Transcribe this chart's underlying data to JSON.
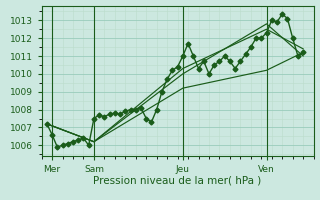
{
  "background_color": "#cce8e0",
  "grid_color_major": "#99ccbb",
  "grid_color_minor": "#bbddcc",
  "line_color": "#1a5c1a",
  "marker_style": "D",
  "marker_size": 2.5,
  "line_width": 1.0,
  "ylabel_ticks": [
    1006,
    1007,
    1008,
    1009,
    1010,
    1011,
    1012,
    1013
  ],
  "xlim": [
    0,
    52
  ],
  "ylim": [
    1005.4,
    1013.8
  ],
  "xlabel": "Pression niveau de la mer( hPa )",
  "xlabel_fontsize": 7.5,
  "tick_fontsize": 6.5,
  "day_labels": [
    "Mer",
    "Sam",
    "Jeu",
    "Ven"
  ],
  "day_positions": [
    2,
    10,
    27,
    43
  ],
  "vline_positions": [
    2,
    10,
    27,
    43
  ],
  "series_main": [
    [
      1,
      1007.2
    ],
    [
      2,
      1006.6
    ],
    [
      3,
      1005.9
    ],
    [
      4,
      1006.0
    ],
    [
      5,
      1006.1
    ],
    [
      6,
      1006.2
    ],
    [
      7,
      1006.3
    ],
    [
      8,
      1006.4
    ],
    [
      9,
      1006.0
    ],
    [
      10,
      1007.5
    ],
    [
      11,
      1007.7
    ],
    [
      12,
      1007.6
    ],
    [
      13,
      1007.75
    ],
    [
      14,
      1007.8
    ],
    [
      15,
      1007.75
    ],
    [
      16,
      1007.9
    ],
    [
      17,
      1008.0
    ],
    [
      18,
      1008.0
    ],
    [
      19,
      1008.1
    ],
    [
      20,
      1007.5
    ],
    [
      21,
      1007.3
    ],
    [
      22,
      1008.0
    ],
    [
      23,
      1009.0
    ],
    [
      24,
      1009.7
    ],
    [
      25,
      1010.2
    ],
    [
      26,
      1010.4
    ],
    [
      27,
      1011.0
    ],
    [
      28,
      1011.7
    ],
    [
      29,
      1011.0
    ],
    [
      30,
      1010.3
    ],
    [
      31,
      1010.7
    ],
    [
      32,
      1010.0
    ],
    [
      33,
      1010.5
    ],
    [
      34,
      1010.7
    ],
    [
      35,
      1011.0
    ],
    [
      36,
      1010.7
    ],
    [
      37,
      1010.3
    ],
    [
      38,
      1010.7
    ],
    [
      39,
      1011.1
    ],
    [
      40,
      1011.5
    ],
    [
      41,
      1012.0
    ],
    [
      42,
      1012.0
    ],
    [
      43,
      1012.3
    ],
    [
      44,
      1013.0
    ],
    [
      45,
      1012.9
    ],
    [
      46,
      1013.35
    ],
    [
      47,
      1013.1
    ],
    [
      48,
      1012.0
    ],
    [
      49,
      1011.0
    ],
    [
      50,
      1011.2
    ]
  ],
  "series2": [
    [
      1,
      1007.2
    ],
    [
      10,
      1006.2
    ],
    [
      27,
      1009.2
    ],
    [
      43,
      1010.2
    ],
    [
      50,
      1011.2
    ]
  ],
  "series3": [
    [
      1,
      1007.2
    ],
    [
      10,
      1006.2
    ],
    [
      27,
      1010.3
    ],
    [
      43,
      1012.5
    ],
    [
      50,
      1011.4
    ]
  ],
  "series4": [
    [
      1,
      1007.2
    ],
    [
      10,
      1006.2
    ],
    [
      27,
      1010.0
    ],
    [
      43,
      1012.8
    ],
    [
      50,
      1011.0
    ]
  ]
}
